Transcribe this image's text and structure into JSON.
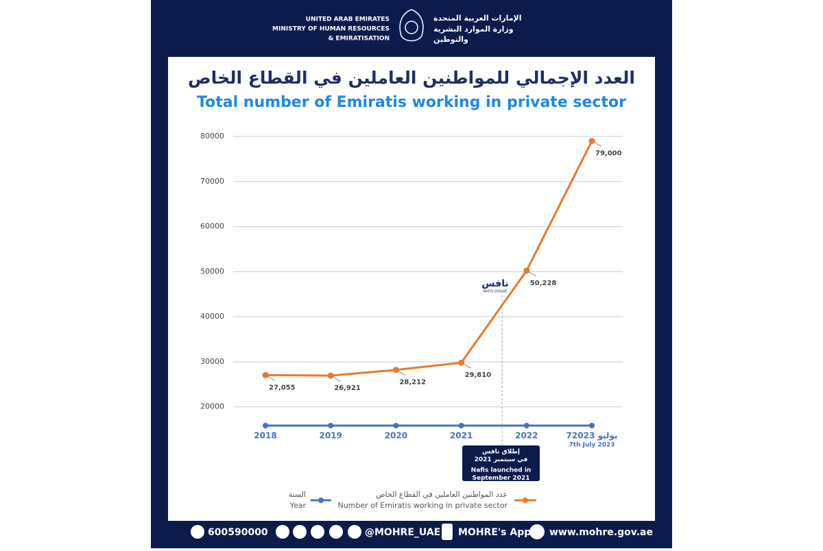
{
  "header": {
    "en_lines": [
      "UNITED ARAB EMIRATES",
      "MINISTRY OF HUMAN RESOURCES",
      "& EMIRATISATION"
    ],
    "ar_lines": [
      "الإمارات العربية المتحدة",
      "وزارة الموارد البشرية",
      "والتوطين"
    ]
  },
  "chart_data": {
    "type": "line",
    "title": "العدد الإجمالي للمواطنين العاملين في القطاع الخاص",
    "subtitle": "Total number of Emiratis working in private sector",
    "categories": [
      "2018",
      "2019",
      "2020",
      "2021",
      "2022",
      "7يوليو 2023"
    ],
    "last_category_en": "7th July 2023",
    "series": [
      {
        "name": "عدد المواطنين العاملين في القطاع الخاص",
        "name_en": "Number of Emiratis working in private sector",
        "color": "#e8792e",
        "values": [
          27055,
          26921,
          28212,
          29810,
          50228,
          79000
        ],
        "value_labels": [
          "27,055",
          "26,921",
          "28,212",
          "29,810",
          "50,228",
          "79,000"
        ]
      }
    ],
    "timeline": {
      "name": "السنة",
      "name_en": "Year",
      "color": "#4472c4"
    },
    "ylim": [
      16000,
      82000
    ],
    "yticks": [
      20000,
      30000,
      40000,
      50000,
      60000,
      70000,
      80000
    ],
    "grid": true,
    "annotation": {
      "logo": "نافس",
      "logo_url": "NAFIS.GOV.AE",
      "lines": [
        "إطلاق نافس",
        "في سبتمبر 2021",
        "Nafis launched in",
        "September 2021"
      ]
    }
  },
  "footer": {
    "phone": "600590000",
    "social": "@MOHRE_UAE",
    "app": "MOHRE's App",
    "website": "www.mohre.gov.ae"
  }
}
